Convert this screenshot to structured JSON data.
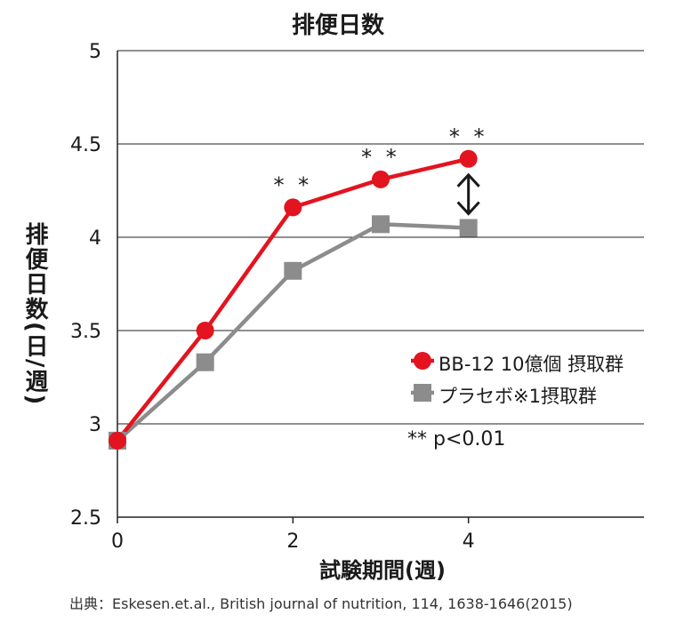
{
  "chart_data": {
    "type": "line",
    "title": "排便日数",
    "xlabel": "試験期間(週)",
    "ylabel": "排便日数(日/週)",
    "x": [
      0,
      1,
      2,
      3,
      4
    ],
    "xticks": [
      "0",
      "2",
      "4"
    ],
    "xlim": [
      0,
      6
    ],
    "yticks": [
      "2.5",
      "3",
      "3.5",
      "4",
      "4.5",
      "5"
    ],
    "ylim": [
      2.5,
      5
    ],
    "grid": "horizontal",
    "legend_position": "right",
    "series": [
      {
        "name": "BB-12 10億個 摂取群",
        "values": [
          2.91,
          3.5,
          4.16,
          4.31,
          4.42
        ],
        "color": "#e3141f",
        "marker": "circle"
      },
      {
        "name": "プラセボ※1摂取群",
        "values": [
          2.91,
          3.33,
          3.82,
          4.07,
          4.05
        ],
        "color": "#8c8c8c",
        "marker": "square"
      }
    ],
    "significance": {
      "label": "**",
      "x": [
        2,
        3,
        4
      ]
    },
    "annotations": [
      "** p<0.01"
    ]
  },
  "source": "出典：Eskesen.et.al., British journal of nutrition, 114, 1638-1646(2015)"
}
